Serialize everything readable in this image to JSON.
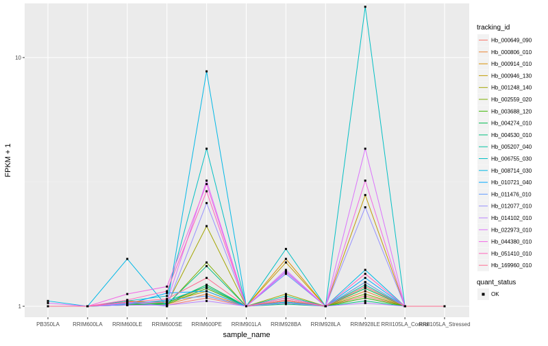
{
  "chart_data": {
    "type": "line",
    "xlabel": "sample_name",
    "ylabel": "FPKM + 1",
    "y_scale": "log10",
    "ylim": [
      0.9,
      16.5
    ],
    "y_ticks": [
      1,
      10
    ],
    "y_tick_labels": [
      "1",
      "10"
    ],
    "categories": [
      "PB350LA",
      "RRIM600LA",
      "RRIM600LE",
      "RRIM600SE",
      "RRIM600PE",
      "RRIM901LA",
      "RRIM928BA",
      "RRIM928LA",
      "RRIM928LE",
      "RRII105LA_Control",
      "RRII105LA_Stressed"
    ],
    "legend": {
      "title": "tracking_id",
      "position": "right",
      "status_title": "quant_status",
      "status_label": "OK"
    },
    "series": [
      {
        "name": "Hb_000649_090",
        "color": "#F8766D",
        "values": [
          1,
          1,
          1.03,
          1.01,
          1.08,
          1,
          1.05,
          1,
          1.1,
          1,
          1
        ]
      },
      {
        "name": "Hb_000806_010",
        "color": "#EA8331",
        "values": [
          1,
          1,
          1.02,
          1.02,
          1.12,
          1,
          1.08,
          1,
          1.15,
          1,
          1
        ]
      },
      {
        "name": "Hb_000914_010",
        "color": "#D89000",
        "values": [
          1,
          1,
          1.05,
          1.03,
          1.2,
          1,
          1.55,
          1,
          1.25,
          1,
          1
        ]
      },
      {
        "name": "Hb_000946_130",
        "color": "#C09B00",
        "values": [
          1,
          1,
          1.04,
          1.04,
          1.15,
          1,
          1.5,
          1,
          2.8,
          1,
          1
        ]
      },
      {
        "name": "Hb_001248_140",
        "color": "#A3A500",
        "values": [
          1,
          1,
          1.03,
          1.02,
          2.1,
          1,
          1.12,
          1,
          1.2,
          1,
          1
        ]
      },
      {
        "name": "Hb_002559_020",
        "color": "#7CAE00",
        "values": [
          1,
          1,
          1.02,
          1.01,
          1.5,
          1,
          1.06,
          1,
          1.12,
          1,
          1
        ]
      },
      {
        "name": "Hb_003688_120",
        "color": "#39B600",
        "values": [
          1,
          1,
          1.01,
          1.02,
          1.18,
          1,
          1.04,
          1,
          1.08,
          1,
          1
        ]
      },
      {
        "name": "Hb_004274_010",
        "color": "#00BB4E",
        "values": [
          1,
          1,
          1.02,
          1.03,
          1.22,
          1,
          1.03,
          1,
          1.18,
          1,
          1
        ]
      },
      {
        "name": "Hb_004530_010",
        "color": "#00BF7D",
        "values": [
          1,
          1,
          1.01,
          1.02,
          1.45,
          1,
          1.02,
          1,
          1.05,
          1,
          1
        ]
      },
      {
        "name": "Hb_005207_040",
        "color": "#00C1A3",
        "values": [
          1,
          1,
          1.03,
          1.05,
          1.2,
          1,
          1.1,
          1,
          1.22,
          1,
          1
        ]
      },
      {
        "name": "Hb_006755_030",
        "color": "#00BFC4",
        "values": [
          1,
          1,
          1.05,
          1.1,
          4.3,
          1,
          1.7,
          1,
          16,
          1,
          1
        ]
      },
      {
        "name": "Hb_008714_030",
        "color": "#00B8E7",
        "values": [
          1.05,
          1,
          1.55,
          1.0,
          8.8,
          1,
          1.04,
          1,
          1.4,
          1,
          1
        ]
      },
      {
        "name": "Hb_010721_040",
        "color": "#00A9FF",
        "values": [
          1,
          1,
          1.02,
          1.13,
          1.15,
          1,
          1.08,
          1,
          1.3,
          1,
          1
        ]
      },
      {
        "name": "Hb_011476_010",
        "color": "#619CFF",
        "values": [
          1,
          1,
          1.02,
          1.06,
          1.1,
          1,
          1.35,
          1,
          1.25,
          1,
          1
        ]
      },
      {
        "name": "Hb_012077_010",
        "color": "#9590FF",
        "values": [
          1,
          1,
          1.04,
          1.0,
          2.6,
          1,
          1.38,
          1,
          2.5,
          1,
          1
        ]
      },
      {
        "name": "Hb_014102_010",
        "color": "#B983FF",
        "values": [
          1,
          1,
          1.01,
          1.01,
          1.05,
          1,
          1.03,
          1,
          1.03,
          1,
          1
        ]
      },
      {
        "name": "Hb_022973_010",
        "color": "#DB72FB",
        "values": [
          1.03,
          1,
          1.03,
          1.04,
          3.2,
          1,
          1.4,
          1,
          4.3,
          1,
          1
        ]
      },
      {
        "name": "Hb_044380_010",
        "color": "#F265E6",
        "values": [
          1,
          1,
          1.12,
          1.2,
          3.1,
          1,
          1.37,
          1,
          3.2,
          1,
          1
        ]
      },
      {
        "name": "Hb_051410_010",
        "color": "#FF62BC",
        "values": [
          1,
          1,
          1.06,
          1.15,
          2.9,
          1,
          1.08,
          1,
          1.35,
          1,
          1
        ]
      },
      {
        "name": "Hb_169960_010",
        "color": "#FF6C91",
        "values": [
          1,
          1,
          1.04,
          1.07,
          1.3,
          1,
          1.06,
          1,
          1.2,
          1,
          1
        ]
      }
    ]
  }
}
